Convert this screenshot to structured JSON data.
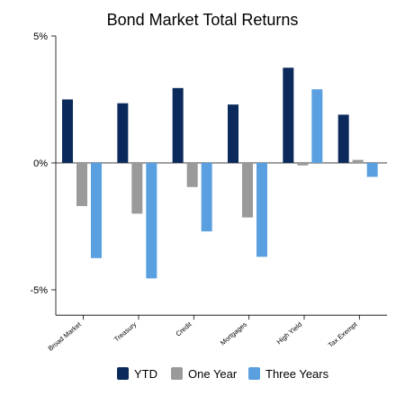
{
  "chart_data": {
    "type": "bar",
    "title": "Bond Market Total Returns",
    "categories": [
      "Broad Market",
      "Treasury",
      "Credit",
      "Mortgages",
      "High Yield",
      "Tax Exempt"
    ],
    "series": [
      {
        "name": "YTD",
        "color": "#0b2a5b",
        "values": [
          2.5,
          2.35,
          2.95,
          2.3,
          3.75,
          1.9
        ]
      },
      {
        "name": "One Year",
        "color": "#9a9a9a",
        "values": [
          -1.7,
          -2.0,
          -0.95,
          -2.15,
          -0.1,
          0.12
        ]
      },
      {
        "name": "Three Years",
        "color": "#5aa0e0",
        "values": [
          -3.75,
          -4.55,
          -2.7,
          -3.7,
          2.9,
          -0.55
        ]
      }
    ],
    "yticks": [
      5,
      0,
      -5
    ],
    "ytick_labels": [
      "5%",
      "0%",
      "-5%"
    ],
    "ylim": [
      -6,
      5
    ],
    "xlabel": "",
    "ylabel": "",
    "grid": false,
    "legend_position": "bottom"
  }
}
